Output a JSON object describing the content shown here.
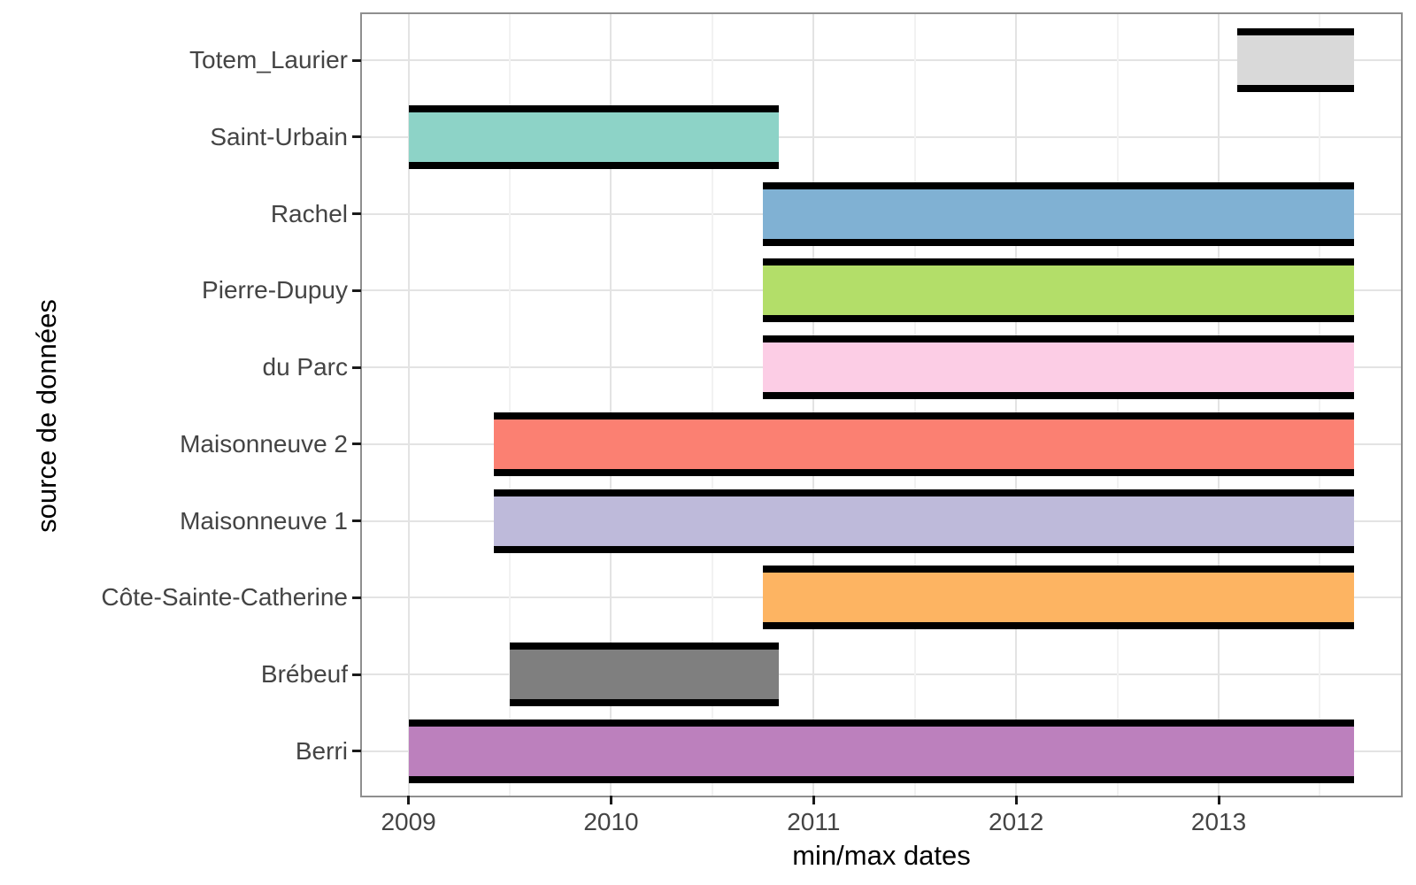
{
  "chart_data": {
    "type": "bar",
    "subtype": "horizontal_range_gantt",
    "title": "",
    "xlabel": "min/max dates",
    "ylabel": "source de données",
    "xlim": [
      2008.77,
      2013.9
    ],
    "x_major_ticks": [
      2009,
      2010,
      2011,
      2012,
      2013
    ],
    "x_minor_gridlines": [
      2009.5,
      2010.5,
      2011.5,
      2012.5,
      2013.5
    ],
    "grid": "major_xy_plus_minor_x",
    "legend_position": "none",
    "bar_outline_color": "#000000",
    "series": [
      {
        "label": "Totem_Laurier",
        "start_year": 2013.09,
        "end_year": 2013.67,
        "fill": "#D9D9D9"
      },
      {
        "label": "Saint-Urbain",
        "start_year": 2009.0,
        "end_year": 2010.83,
        "fill": "#8DD3C7"
      },
      {
        "label": "Rachel",
        "start_year": 2010.75,
        "end_year": 2013.67,
        "fill": "#80B1D3"
      },
      {
        "label": "Pierre-Dupuy",
        "start_year": 2010.75,
        "end_year": 2013.67,
        "fill": "#B3DE69"
      },
      {
        "label": "du Parc",
        "start_year": 2010.75,
        "end_year": 2013.67,
        "fill": "#FCCDE5"
      },
      {
        "label": "Maisonneuve 2",
        "start_year": 2009.42,
        "end_year": 2013.67,
        "fill": "#FB8072"
      },
      {
        "label": "Maisonneuve 1",
        "start_year": 2009.42,
        "end_year": 2013.67,
        "fill": "#BEBADA"
      },
      {
        "label": "Côte-Sainte-Catherine",
        "start_year": 2010.75,
        "end_year": 2013.67,
        "fill": "#FDB462"
      },
      {
        "label": "Brébeuf",
        "start_year": 2009.5,
        "end_year": 2010.83,
        "fill": "#7F7F7F"
      },
      {
        "label": "Berri",
        "start_year": 2009.0,
        "end_year": 2013.67,
        "fill": "#BC80BD"
      }
    ]
  },
  "colors": {
    "background": "#FFFFFF",
    "panel_border": "#8F8F8F",
    "grid_major": "#E3E3E3",
    "grid_minor": "#F2F2F2",
    "tick_mark": "#1A1A1A",
    "axis_text": "#444444",
    "axis_title_text": "#000000",
    "bar_cap": "#000000"
  }
}
